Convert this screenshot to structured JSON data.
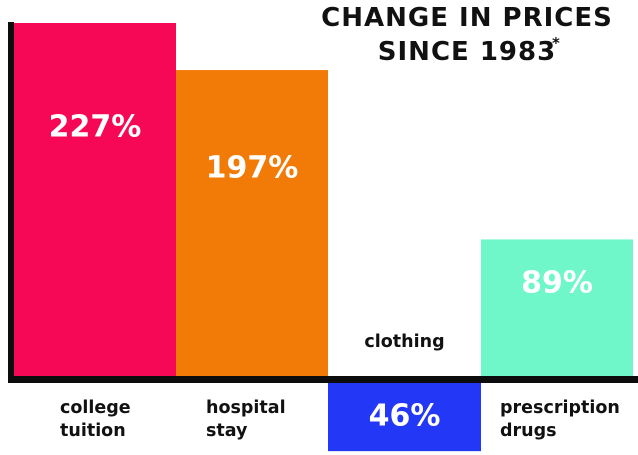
{
  "chart_data": {
    "type": "bar",
    "title_lines": [
      "CHANGE IN PRICES",
      "SINCE 1983"
    ],
    "title_marker": "*",
    "categories": [
      [
        "college",
        "tuition"
      ],
      [
        "hospital",
        "stay"
      ],
      [
        "clothing"
      ],
      [
        "prescription",
        "drugs"
      ]
    ],
    "values": [
      227,
      197,
      -46,
      89
    ],
    "value_labels": [
      "227%",
      "197%",
      "46%",
      "89%"
    ],
    "colors": [
      "#f70857",
      "#f27a06",
      "#2337f6",
      "#6ff7c9"
    ],
    "unit": "%",
    "xlabel": "",
    "ylabel": "",
    "grid": false,
    "legend": "none"
  }
}
